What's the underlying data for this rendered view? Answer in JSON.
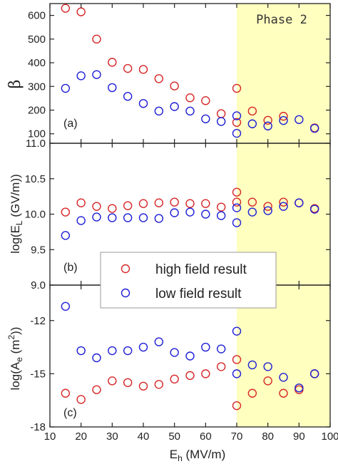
{
  "colors": {
    "high_field": "#d62728",
    "low_field": "#1f1fd6",
    "phase_band": "#ffffc0",
    "axis": "#222222"
  },
  "phase_label": "Phase 2",
  "legend": {
    "placement": "center",
    "high": "high field result",
    "low": "low field result"
  },
  "chart_data": {
    "type": "scatter",
    "x": [
      15,
      20,
      25,
      30,
      35,
      40,
      45,
      50,
      55,
      60,
      65,
      70,
      75,
      80,
      85,
      90,
      95
    ],
    "xlabel_main": "E",
    "xlabel_sub": "h",
    "xlabel_rest": " (MV/m)",
    "xlim": [
      10,
      100
    ],
    "xticks": [
      10,
      20,
      30,
      40,
      50,
      60,
      70,
      80,
      90,
      100
    ],
    "xtick_labels": [
      "10",
      "20",
      "30",
      "40",
      "50",
      "60",
      "70",
      "80",
      "90",
      "100"
    ],
    "phase_region": [
      70,
      100
    ],
    "panels": [
      {
        "tag": "(a)",
        "ylabel": "β",
        "ylim": [
          60,
          650
        ],
        "yticks": [
          100,
          200,
          300,
          400,
          500,
          600
        ],
        "ytick_labels": [
          "100",
          "200",
          "300",
          "400",
          "500",
          "600"
        ],
        "series": [
          {
            "key": "high",
            "points": [
              [
                15,
                630
              ],
              [
                20,
                615
              ],
              [
                25,
                500
              ],
              [
                30,
                402
              ],
              [
                35,
                376
              ],
              [
                40,
                372
              ],
              [
                45,
                333
              ],
              [
                50,
                302
              ],
              [
                55,
                252
              ],
              [
                60,
                240
              ],
              [
                65,
                185
              ],
              [
                70,
                292
              ],
              [
                70,
                148
              ],
              [
                75,
                196
              ],
              [
                80,
                157
              ],
              [
                85,
                174
              ],
              [
                95,
                125
              ]
            ]
          },
          {
            "key": "low",
            "points": [
              [
                15,
                292
              ],
              [
                20,
                345
              ],
              [
                25,
                350
              ],
              [
                30,
                295
              ],
              [
                35,
                258
              ],
              [
                40,
                228
              ],
              [
                45,
                196
              ],
              [
                50,
                215
              ],
              [
                55,
                196
              ],
              [
                60,
                163
              ],
              [
                65,
                152
              ],
              [
                70,
                176
              ],
              [
                70,
                102
              ],
              [
                75,
                142
              ],
              [
                80,
                133
              ],
              [
                85,
                156
              ],
              [
                90,
                160
              ],
              [
                95,
                123
              ]
            ]
          }
        ]
      },
      {
        "tag": "(b)",
        "ylabel_pre": "log(E",
        "ylabel_sub": "L",
        "ylabel_post": " (GV/m))",
        "ylim": [
          9.0,
          11.0
        ],
        "yticks": [
          9.0,
          9.5,
          10.0,
          10.5,
          11.0
        ],
        "ytick_labels": [
          "9.0",
          "9.5",
          "10.0",
          "10.5",
          "11.0"
        ],
        "series": [
          {
            "key": "high",
            "points": [
              [
                15,
                10.03
              ],
              [
                20,
                10.16
              ],
              [
                25,
                10.11
              ],
              [
                30,
                10.08
              ],
              [
                35,
                10.12
              ],
              [
                40,
                10.15
              ],
              [
                45,
                10.16
              ],
              [
                50,
                10.17
              ],
              [
                55,
                10.15
              ],
              [
                60,
                10.15
              ],
              [
                65,
                10.1
              ],
              [
                70,
                10.31
              ],
              [
                70,
                10.17
              ],
              [
                75,
                10.17
              ],
              [
                80,
                10.11
              ],
              [
                85,
                10.17
              ],
              [
                90,
                10.16
              ],
              [
                95,
                10.08
              ]
            ]
          },
          {
            "key": "low",
            "points": [
              [
                15,
                9.7
              ],
              [
                20,
                9.91
              ],
              [
                25,
                9.96
              ],
              [
                30,
                9.95
              ],
              [
                35,
                9.95
              ],
              [
                40,
                9.95
              ],
              [
                45,
                9.94
              ],
              [
                50,
                10.02
              ],
              [
                55,
                10.03
              ],
              [
                60,
                10.0
              ],
              [
                65,
                9.98
              ],
              [
                70,
                10.09
              ],
              [
                70,
                9.88
              ],
              [
                75,
                10.03
              ],
              [
                80,
                10.05
              ],
              [
                85,
                10.11
              ],
              [
                90,
                10.16
              ],
              [
                95,
                10.07
              ]
            ]
          }
        ]
      },
      {
        "tag": "(c)",
        "ylabel_pre": "log(A",
        "ylabel_sub": "e",
        "ylabel_mid": " (m",
        "ylabel_sup": "2",
        "ylabel_post": "))",
        "ylim": [
          -18,
          -10
        ],
        "yticks": [
          -18,
          -15,
          -12
        ],
        "ytick_labels": [
          "-18",
          "-15",
          "-12"
        ],
        "series": [
          {
            "key": "high",
            "points": [
              [
                15,
                -16.1
              ],
              [
                20,
                -16.45
              ],
              [
                25,
                -15.9
              ],
              [
                30,
                -15.4
              ],
              [
                35,
                -15.5
              ],
              [
                40,
                -15.7
              ],
              [
                45,
                -15.6
              ],
              [
                50,
                -15.3
              ],
              [
                55,
                -15.1
              ],
              [
                60,
                -15.0
              ],
              [
                65,
                -14.6
              ],
              [
                70,
                -16.8
              ],
              [
                70,
                -14.2
              ],
              [
                75,
                -16.1
              ],
              [
                80,
                -15.4
              ],
              [
                85,
                -16.1
              ],
              [
                90,
                -15.9
              ],
              [
                95,
                -15.0
              ]
            ]
          },
          {
            "key": "low",
            "points": [
              [
                15,
                -11.2
              ],
              [
                20,
                -13.7
              ],
              [
                25,
                -14.1
              ],
              [
                30,
                -13.7
              ],
              [
                35,
                -13.7
              ],
              [
                40,
                -13.5
              ],
              [
                45,
                -13.2
              ],
              [
                50,
                -13.8
              ],
              [
                55,
                -14.0
              ],
              [
                60,
                -13.5
              ],
              [
                65,
                -13.6
              ],
              [
                70,
                -12.6
              ],
              [
                70,
                -15.0
              ],
              [
                75,
                -14.5
              ],
              [
                80,
                -14.6
              ],
              [
                85,
                -15.2
              ],
              [
                90,
                -15.8
              ],
              [
                95,
                -15.0
              ]
            ]
          }
        ]
      }
    ]
  }
}
